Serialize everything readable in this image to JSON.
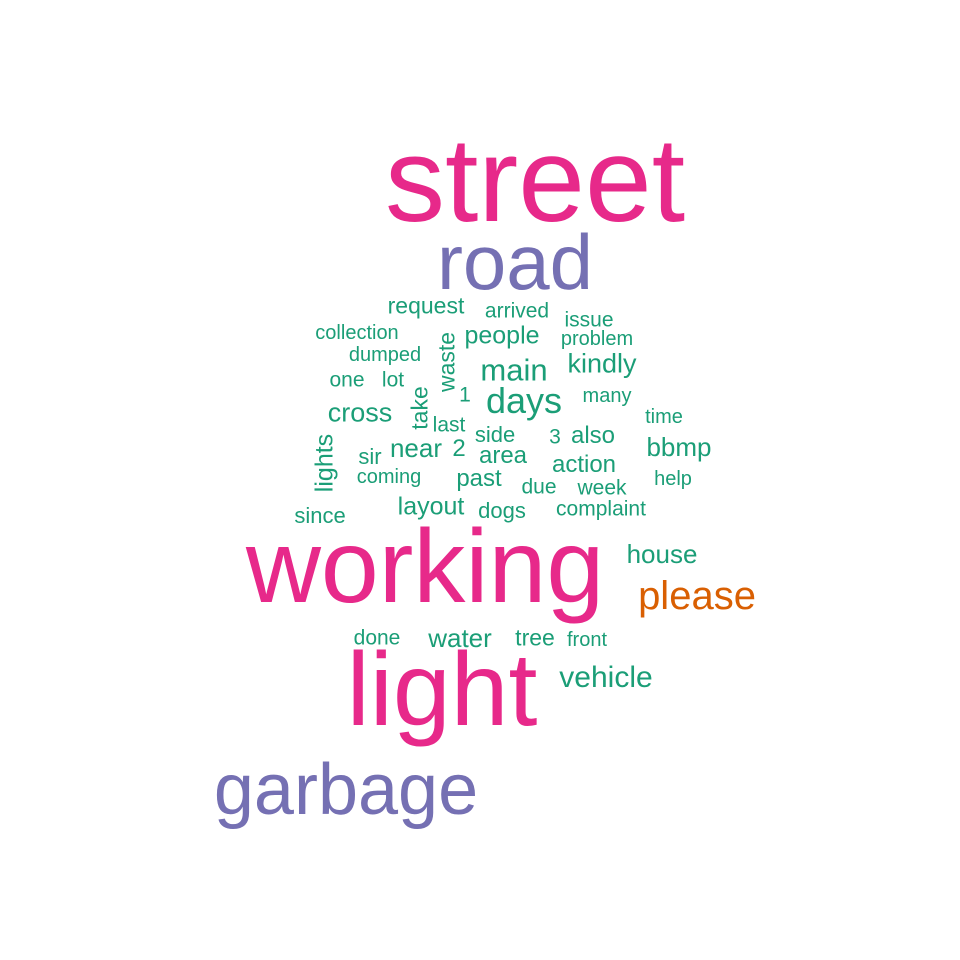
{
  "colors": {
    "pink": "#e7298a",
    "purple": "#7570b3",
    "orange": "#d95f02",
    "green": "#1b9e77",
    "background": "#ffffff"
  },
  "words": {
    "street": "street",
    "road": "road",
    "working": "working",
    "light": "light",
    "garbage": "garbage",
    "please": "please",
    "request": "request",
    "arrived": "arrived",
    "issue": "issue",
    "collection": "collection",
    "people": "people",
    "problem": "problem",
    "dumped": "dumped",
    "waste": "waste",
    "main": "main",
    "kindly": "kindly",
    "one": "one",
    "lot": "lot",
    "take": "take",
    "n1": "1",
    "days": "days",
    "many": "many",
    "cross": "cross",
    "last": "last",
    "time": "time",
    "lights": "lights",
    "side": "side",
    "n3": "3",
    "also": "also",
    "near": "near",
    "n2": "2",
    "area": "area",
    "bbmp": "bbmp",
    "sir": "sir",
    "action": "action",
    "coming": "coming",
    "past": "past",
    "help": "help",
    "due": "due",
    "week": "week",
    "since": "since",
    "layout": "layout",
    "dogs": "dogs",
    "complaint": "complaint",
    "house": "house",
    "done": "done",
    "water": "water",
    "tree": "tree",
    "front": "front",
    "vehicle": "vehicle"
  }
}
